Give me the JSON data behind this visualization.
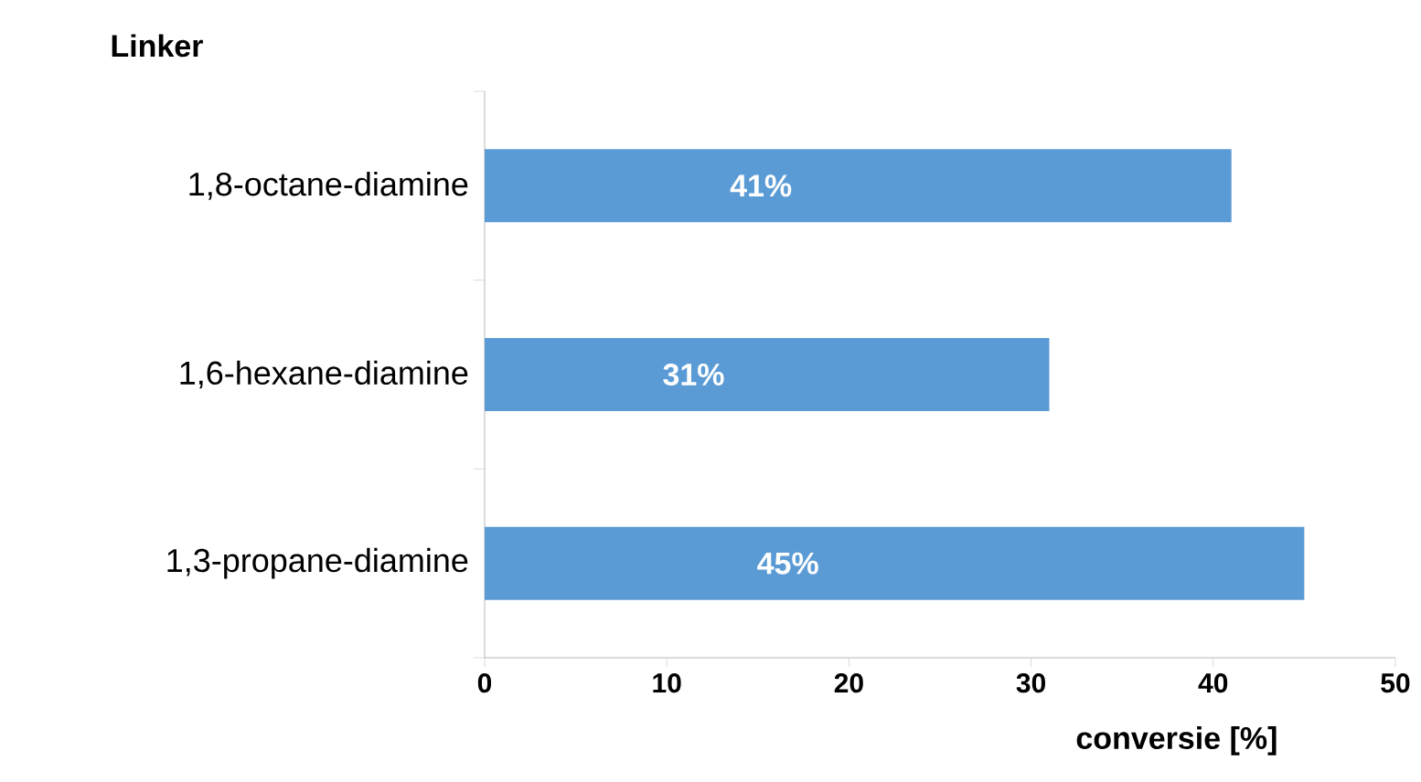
{
  "chart_data": {
    "type": "bar",
    "orientation": "horizontal",
    "title": "Linker",
    "xlabel": "conversie [%]",
    "categories": [
      "1,8-octane-diamine",
      "1,6-hexane-diamine",
      "1,3-propane-diamine"
    ],
    "values": [
      41,
      31,
      45
    ],
    "color": "#5b9bd5",
    "value_labels": [
      "41%",
      "31%",
      "45%"
    ],
    "xlim": [
      0,
      50
    ],
    "xticks": [
      0,
      10,
      20,
      30,
      40,
      50
    ],
    "grid": false
  }
}
